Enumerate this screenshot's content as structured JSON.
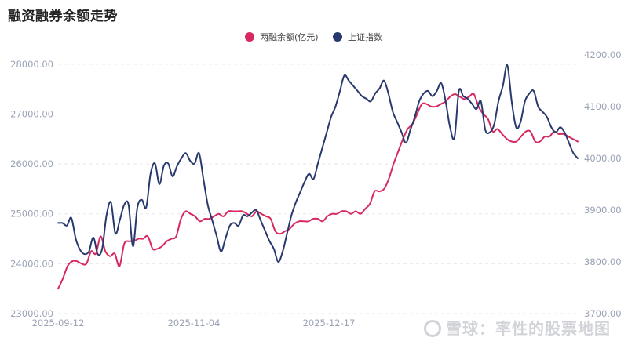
{
  "page": {
    "watermark": "雪球：率性的股票地图"
  },
  "chart_data": {
    "type": "line",
    "title": "融资融券余额走势",
    "legend_position": "top-center",
    "grid": true,
    "x_ticks": [
      "2025-09-12",
      "2025-11-04",
      "2025-12-17"
    ],
    "left_axis": {
      "ylim": [
        23000,
        28500
      ],
      "ticks": [
        "23000.00",
        "24000.00",
        "25000.00",
        "26000.00",
        "27000.00",
        "28000.00"
      ]
    },
    "right_axis": {
      "ylim": [
        3700,
        4230
      ],
      "ticks": [
        "3700.00",
        "3800.00",
        "3900.00",
        "4000.00",
        "4100.00",
        "4200.00"
      ]
    },
    "series": [
      {
        "name": "两融余额(亿元)",
        "axis": "left",
        "color": "#d6295f",
        "values": [
          23500,
          23700,
          23950,
          24050,
          24050,
          24000,
          24000,
          24250,
          24200,
          24550,
          24250,
          24150,
          24200,
          23950,
          24400,
          24450,
          24450,
          24500,
          24500,
          24550,
          24300,
          24300,
          24350,
          24450,
          24500,
          24550,
          24900,
          25050,
          25000,
          24950,
          24850,
          24900,
          24900,
          24950,
          25000,
          24950,
          25050,
          25050,
          25050,
          25050,
          25000,
          24950,
          25050,
          25000,
          24950,
          24900,
          24650,
          24600,
          24650,
          24700,
          24800,
          24850,
          24850,
          24850,
          24900,
          24900,
          24850,
          24950,
          25000,
          25000,
          25050,
          25050,
          25000,
          25050,
          25000,
          25100,
          25200,
          25450,
          25450,
          25500,
          25700,
          26000,
          26250,
          26500,
          26700,
          26800,
          27000,
          27200,
          27200,
          27150,
          27150,
          27200,
          27250,
          27350,
          27400,
          27350,
          27300,
          27350,
          27400,
          27150,
          27000,
          26900,
          26650,
          26700,
          26600,
          26500,
          26450,
          26450,
          26550,
          26650,
          26650,
          26450,
          26450,
          26550,
          26550,
          26650,
          26600,
          26600,
          26550,
          26500,
          26450
        ]
      },
      {
        "name": "上证指数",
        "axis": "right",
        "color": "#28396e",
        "values": [
          3875,
          3875,
          3870,
          3885,
          3845,
          3823,
          3815,
          3820,
          3847,
          3815,
          3825,
          3890,
          3915,
          3855,
          3880,
          3910,
          3910,
          3830,
          3905,
          3920,
          3905,
          3970,
          3990,
          3950,
          3985,
          3990,
          3965,
          3985,
          4000,
          4010,
          3995,
          3990,
          4010,
          3960,
          3910,
          3880,
          3850,
          3820,
          3845,
          3870,
          3875,
          3870,
          3890,
          3888,
          3895,
          3900,
          3880,
          3860,
          3840,
          3825,
          3800,
          3820,
          3855,
          3890,
          3915,
          3935,
          3955,
          3970,
          3960,
          3990,
          4020,
          4050,
          4080,
          4100,
          4130,
          4160,
          4150,
          4140,
          4130,
          4120,
          4115,
          4110,
          4125,
          4135,
          4150,
          4125,
          4090,
          4070,
          4050,
          4030,
          4055,
          4080,
          4110,
          4125,
          4130,
          4120,
          4130,
          4145,
          4110,
          4060,
          4040,
          4130,
          4120,
          4115,
          4105,
          4095,
          4110,
          4055,
          4050,
          4065,
          4110,
          4140,
          4180,
          4110,
          4060,
          4070,
          4110,
          4125,
          4130,
          4100,
          4090,
          4080,
          4060,
          4050,
          4060,
          4050,
          4030,
          4010,
          4000
        ]
      }
    ]
  }
}
